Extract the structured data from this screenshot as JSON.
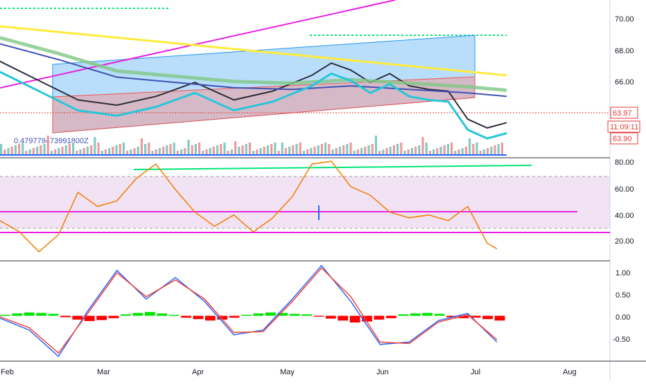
{
  "colors": {
    "axis_text": "#131722",
    "grid": "#eef0f3",
    "pane_border": "#2a2e39",
    "price_line": "#e53935",
    "price_label_bg": "#e53935",
    "ma_fast": "#2a2e39",
    "ma_slow": "#3f51b5",
    "trend_yellow": "#ffeb3b",
    "trend_magenta": "#e91ee3",
    "rsi_line": "#f57c00",
    "rsi_band": "#e1bee7",
    "macd_line": "#2962ff",
    "signal_line": "#f44336",
    "hist_pos": "#00e600",
    "hist_neg": "#ff0000",
    "level_green": "#00e676",
    "channel_blue": "#2196f3",
    "channel_red": "#ef5350"
  },
  "x_axis": {
    "labels": [
      "Feb",
      "Mar",
      "Apr",
      "May",
      "Jun",
      "Jul",
      "Aug"
    ]
  },
  "price_pane": {
    "y_ticks": [
      "70.00",
      "68.00",
      "66.00"
    ],
    "price_labels": {
      "last": "63.97",
      "countdown": "11:09:11",
      "other": "63.90"
    },
    "volume_readout": "0.479779473991800Z"
  },
  "rsi_pane": {
    "y_ticks": [
      "80.00",
      "60.00",
      "40.00",
      "20.00"
    ]
  },
  "macd_pane": {
    "y_ticks": [
      "1.00",
      "0.50",
      "0.00",
      "-0.50"
    ]
  },
  "chart_data": [
    {
      "type": "line",
      "pane": "price",
      "ylim": [
        62.0,
        71.0
      ],
      "series": [
        {
          "x": [
            0,
            20,
            40,
            60,
            80,
            100,
            120,
            140,
            160,
            170,
            180,
            190,
            200,
            210,
            220,
            230,
            240,
            250,
            260
          ],
          "values": [
            67.5,
            66.4,
            65.3,
            65.0,
            65.5,
            66.3,
            65.3,
            65.8,
            66.7,
            67.4,
            67.0,
            66.3,
            66.8,
            66.1,
            65.9,
            65.8,
            64.2,
            63.7,
            64.0
          ]
        },
        {
          "x": [
            0,
            30,
            60,
            90,
            120,
            150,
            180,
            210,
            240,
            260
          ],
          "values": [
            68.5,
            67.6,
            66.6,
            66.3,
            66.0,
            65.9,
            66.1,
            65.9,
            65.7,
            65.5
          ]
        }
      ],
      "y_labels_shown": [
        70.0,
        68.0,
        66.0
      ]
    },
    {
      "type": "line",
      "pane": "rsi",
      "ylim": [
        10,
        82
      ],
      "series": [
        {
          "x": [
            0,
            10,
            20,
            30,
            40,
            50,
            60,
            70,
            80,
            90,
            100,
            110,
            120,
            130,
            140,
            150,
            160,
            170,
            180,
            190,
            200,
            210,
            220,
            230,
            240,
            250,
            255
          ],
          "values": [
            38,
            30,
            16,
            28,
            58,
            48,
            52,
            68,
            78,
            60,
            44,
            34,
            42,
            30,
            40,
            55,
            78,
            80,
            62,
            56,
            44,
            40,
            42,
            38,
            48,
            22,
            18
          ]
        }
      ],
      "levels": [
        70,
        43,
        30,
        27
      ],
      "y_labels_shown": [
        80.0,
        60.0,
        40.0,
        20.0
      ]
    },
    {
      "type": "line",
      "pane": "macd",
      "ylim": [
        -0.95,
        1.15
      ],
      "series": [
        {
          "x": [
            0,
            15,
            30,
            45,
            60,
            75,
            90,
            105,
            120,
            135,
            150,
            165,
            180,
            195,
            210,
            225,
            240,
            255
          ],
          "values": [
            -0.05,
            -0.3,
            -0.85,
            0.1,
            0.95,
            0.35,
            0.8,
            0.3,
            -0.4,
            -0.3,
            0.35,
            1.05,
            0.3,
            -0.6,
            -0.55,
            -0.1,
            0.05,
            -0.55
          ]
        },
        {
          "x": [
            0,
            15,
            30,
            45,
            60,
            75,
            90,
            105,
            120,
            135,
            150,
            165,
            180,
            195,
            210,
            225,
            240,
            255
          ],
          "values": [
            -0.02,
            -0.25,
            -0.78,
            0.05,
            0.9,
            0.4,
            0.75,
            0.35,
            -0.35,
            -0.33,
            0.3,
            1.0,
            0.4,
            -0.55,
            -0.58,
            -0.13,
            0.02,
            -0.5
          ]
        }
      ],
      "histogram": [
        0.02,
        0.05,
        0.07,
        0.06,
        0.04,
        -0.03,
        -0.08,
        -0.11,
        -0.09,
        -0.05,
        0.03,
        0.06,
        0.08,
        0.05,
        0.02,
        -0.04,
        -0.07,
        -0.1,
        -0.08,
        -0.04,
        0.02,
        0.05,
        0.07,
        0.06,
        0.04,
        0.03,
        -0.02,
        -0.06,
        -0.1,
        -0.14,
        -0.12,
        -0.08,
        -0.05,
        0.03,
        0.05,
        0.06,
        0.04,
        -0.03,
        -0.05,
        -0.04,
        -0.07,
        -0.1
      ],
      "y_labels_shown": [
        1.0,
        0.5,
        0.0,
        -0.5
      ]
    }
  ]
}
